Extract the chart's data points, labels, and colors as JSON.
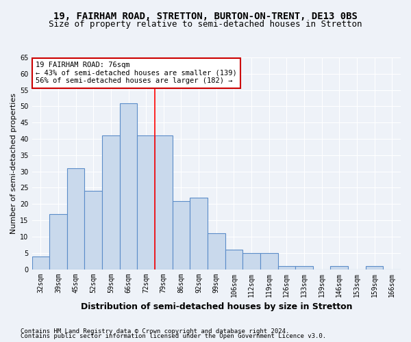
{
  "title1": "19, FAIRHAM ROAD, STRETTON, BURTON-ON-TRENT, DE13 0BS",
  "title2": "Size of property relative to semi-detached houses in Stretton",
  "xlabel": "Distribution of semi-detached houses by size in Stretton",
  "ylabel": "Number of semi-detached properties",
  "categories": [
    "32sqm",
    "39sqm",
    "45sqm",
    "52sqm",
    "59sqm",
    "66sqm",
    "72sqm",
    "79sqm",
    "86sqm",
    "92sqm",
    "99sqm",
    "106sqm",
    "112sqm",
    "119sqm",
    "126sqm",
    "133sqm",
    "139sqm",
    "146sqm",
    "153sqm",
    "159sqm",
    "166sqm"
  ],
  "values": [
    4,
    17,
    31,
    24,
    41,
    51,
    41,
    41,
    21,
    22,
    11,
    6,
    5,
    5,
    1,
    1,
    0,
    1,
    0,
    1,
    0
  ],
  "bar_color": "#c9d9ec",
  "bar_edge_color": "#5b8cc8",
  "red_line_index": 6,
  "annotation_text": "19 FAIRHAM ROAD: 76sqm\n← 43% of semi-detached houses are smaller (139)\n56% of semi-detached houses are larger (182) →",
  "annotation_box_color": "#ffffff",
  "annotation_box_edge_color": "#cc0000",
  "ylim": [
    0,
    65
  ],
  "yticks": [
    0,
    5,
    10,
    15,
    20,
    25,
    30,
    35,
    40,
    45,
    50,
    55,
    60,
    65
  ],
  "footer1": "Contains HM Land Registry data © Crown copyright and database right 2024.",
  "footer2": "Contains public sector information licensed under the Open Government Licence v3.0.",
  "background_color": "#eef2f8",
  "grid_color": "#ffffff",
  "title_fontsize": 10,
  "subtitle_fontsize": 9,
  "xlabel_fontsize": 9,
  "ylabel_fontsize": 8,
  "tick_fontsize": 7,
  "annotation_fontsize": 7.5,
  "footer_fontsize": 6.5
}
